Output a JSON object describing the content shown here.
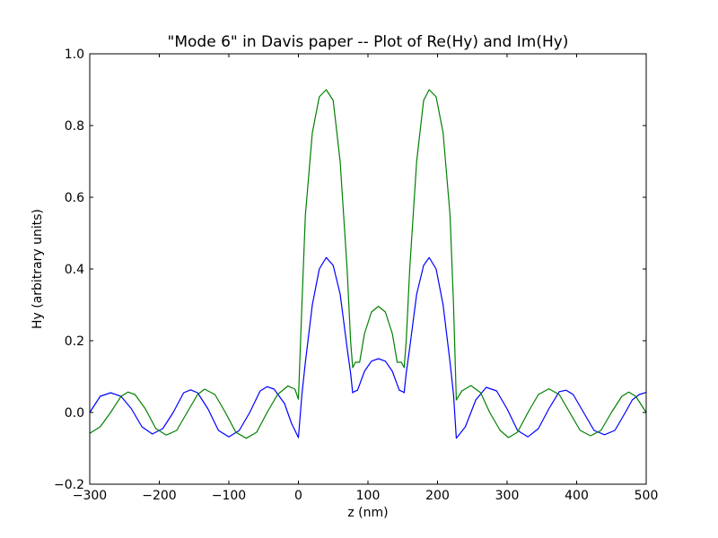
{
  "chart_data": {
    "type": "line",
    "title": "\"Mode 6\" in Davis paper -- Plot of Re(Hy) and Im(Hy)",
    "xlabel": "z (nm)",
    "ylabel": "Hy (arbitrary units)",
    "xlim": [
      -300,
      500
    ],
    "ylim": [
      -0.2,
      1.0
    ],
    "xticks": [
      -300,
      -200,
      -100,
      0,
      100,
      200,
      300,
      400,
      500
    ],
    "xtick_labels": [
      "−300",
      "−200",
      "−100",
      "0",
      "100",
      "200",
      "300",
      "400",
      "500"
    ],
    "yticks": [
      -0.2,
      0.0,
      0.2,
      0.4,
      0.6,
      0.8,
      1.0
    ],
    "ytick_labels": [
      "−0.2",
      "0.0",
      "0.2",
      "0.4",
      "0.6",
      "0.8",
      "1.0"
    ],
    "grid": false,
    "series": [
      {
        "color": "#0000ff",
        "points": [
          [
            -300,
            0.0
          ],
          [
            -285,
            0.045
          ],
          [
            -270,
            0.055
          ],
          [
            -255,
            0.045
          ],
          [
            -240,
            0.01
          ],
          [
            -225,
            -0.04
          ],
          [
            -210,
            -0.06
          ],
          [
            -195,
            -0.045
          ],
          [
            -180,
            0.0
          ],
          [
            -165,
            0.055
          ],
          [
            -155,
            0.063
          ],
          [
            -145,
            0.055
          ],
          [
            -130,
            0.01
          ],
          [
            -115,
            -0.05
          ],
          [
            -100,
            -0.068
          ],
          [
            -85,
            -0.05
          ],
          [
            -70,
            0.0
          ],
          [
            -55,
            0.06
          ],
          [
            -45,
            0.072
          ],
          [
            -35,
            0.065
          ],
          [
            -20,
            0.025
          ],
          [
            -10,
            -0.03
          ],
          [
            0,
            -0.07
          ],
          [
            5,
            0.05
          ],
          [
            10,
            0.14
          ],
          [
            20,
            0.3
          ],
          [
            30,
            0.4
          ],
          [
            40,
            0.432
          ],
          [
            50,
            0.41
          ],
          [
            60,
            0.33
          ],
          [
            70,
            0.18
          ],
          [
            75,
            0.11
          ],
          [
            78,
            0.055
          ],
          [
            80,
            0.058
          ],
          [
            85,
            0.062
          ],
          [
            95,
            0.115
          ],
          [
            105,
            0.143
          ],
          [
            115,
            0.15
          ],
          [
            125,
            0.143
          ],
          [
            135,
            0.115
          ],
          [
            145,
            0.062
          ],
          [
            150,
            0.058
          ],
          [
            152,
            0.055
          ],
          [
            155,
            0.11
          ],
          [
            160,
            0.18
          ],
          [
            170,
            0.33
          ],
          [
            180,
            0.41
          ],
          [
            188,
            0.432
          ],
          [
            198,
            0.4
          ],
          [
            208,
            0.3
          ],
          [
            218,
            0.14
          ],
          [
            223,
            0.05
          ],
          [
            227,
            -0.072
          ],
          [
            240,
            -0.04
          ],
          [
            255,
            0.035
          ],
          [
            270,
            0.07
          ],
          [
            285,
            0.06
          ],
          [
            300,
            0.01
          ],
          [
            315,
            -0.05
          ],
          [
            330,
            -0.068
          ],
          [
            345,
            -0.045
          ],
          [
            360,
            0.01
          ],
          [
            375,
            0.058
          ],
          [
            385,
            0.062
          ],
          [
            395,
            0.05
          ],
          [
            410,
            0.0
          ],
          [
            425,
            -0.05
          ],
          [
            440,
            -0.062
          ],
          [
            455,
            -0.05
          ],
          [
            470,
            0.0
          ],
          [
            480,
            0.035
          ],
          [
            490,
            0.05
          ],
          [
            500,
            0.056
          ]
        ]
      },
      {
        "color": "#008000",
        "points": [
          [
            -300,
            -0.058
          ],
          [
            -285,
            -0.04
          ],
          [
            -270,
            0.0
          ],
          [
            -255,
            0.045
          ],
          [
            -245,
            0.057
          ],
          [
            -235,
            0.05
          ],
          [
            -220,
            0.01
          ],
          [
            -205,
            -0.045
          ],
          [
            -190,
            -0.063
          ],
          [
            -175,
            -0.05
          ],
          [
            -160,
            0.0
          ],
          [
            -145,
            0.05
          ],
          [
            -135,
            0.065
          ],
          [
            -120,
            0.05
          ],
          [
            -105,
            0.0
          ],
          [
            -90,
            -0.055
          ],
          [
            -75,
            -0.072
          ],
          [
            -60,
            -0.055
          ],
          [
            -45,
            0.0
          ],
          [
            -30,
            0.05
          ],
          [
            -15,
            0.074
          ],
          [
            -5,
            0.065
          ],
          [
            0,
            0.037
          ],
          [
            5,
            0.3
          ],
          [
            10,
            0.55
          ],
          [
            20,
            0.78
          ],
          [
            30,
            0.88
          ],
          [
            40,
            0.9
          ],
          [
            50,
            0.87
          ],
          [
            60,
            0.7
          ],
          [
            70,
            0.4
          ],
          [
            75,
            0.2
          ],
          [
            78,
            0.125
          ],
          [
            82,
            0.14
          ],
          [
            88,
            0.14
          ],
          [
            95,
            0.22
          ],
          [
            105,
            0.28
          ],
          [
            115,
            0.296
          ],
          [
            125,
            0.28
          ],
          [
            135,
            0.22
          ],
          [
            142,
            0.14
          ],
          [
            148,
            0.14
          ],
          [
            152,
            0.125
          ],
          [
            155,
            0.2
          ],
          [
            160,
            0.4
          ],
          [
            170,
            0.7
          ],
          [
            180,
            0.87
          ],
          [
            188,
            0.9
          ],
          [
            198,
            0.88
          ],
          [
            208,
            0.78
          ],
          [
            218,
            0.55
          ],
          [
            223,
            0.3
          ],
          [
            227,
            0.035
          ],
          [
            235,
            0.06
          ],
          [
            248,
            0.075
          ],
          [
            262,
            0.055
          ],
          [
            275,
            0.0
          ],
          [
            290,
            -0.05
          ],
          [
            302,
            -0.07
          ],
          [
            315,
            -0.055
          ],
          [
            330,
            0.0
          ],
          [
            345,
            0.05
          ],
          [
            360,
            0.066
          ],
          [
            375,
            0.05
          ],
          [
            390,
            0.0
          ],
          [
            405,
            -0.05
          ],
          [
            420,
            -0.065
          ],
          [
            435,
            -0.05
          ],
          [
            450,
            0.0
          ],
          [
            465,
            0.045
          ],
          [
            475,
            0.057
          ],
          [
            485,
            0.045
          ],
          [
            500,
            0.0
          ]
        ]
      }
    ]
  }
}
